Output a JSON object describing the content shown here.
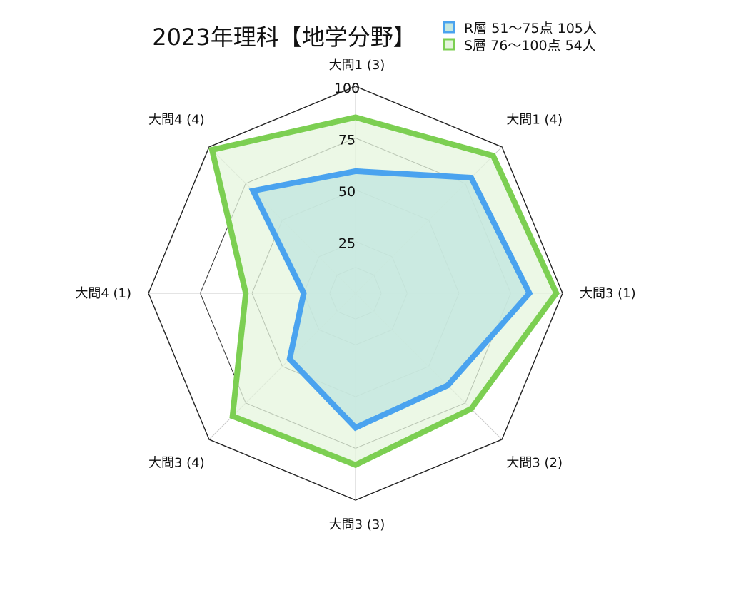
{
  "chart_data": {
    "type": "radar",
    "title": "2023年理科【地学分野】",
    "categories": [
      "大問1 (3)",
      "大問1 (4)",
      "大問3 (1)",
      "大問3 (2)",
      "大問3 (3)",
      "大問3 (4)",
      "大問4 (1)",
      "大問4 (4)"
    ],
    "series": [
      {
        "name": "R層 51〜75点 105人",
        "color": "#4aa3ef",
        "fill": "#c6e8df",
        "values": [
          59,
          79,
          84,
          63,
          65,
          45,
          25,
          70
        ]
      },
      {
        "name": "S層 76〜100点 54人",
        "color": "#7ccf52",
        "fill": "#e5f5dd",
        "values": [
          85,
          94,
          97,
          79,
          83,
          84,
          53,
          98
        ]
      }
    ],
    "r_range": [
      0,
      100
    ],
    "r_ticks": [
      25,
      50,
      75,
      100
    ],
    "grid": true,
    "legend_position": "top-right"
  }
}
